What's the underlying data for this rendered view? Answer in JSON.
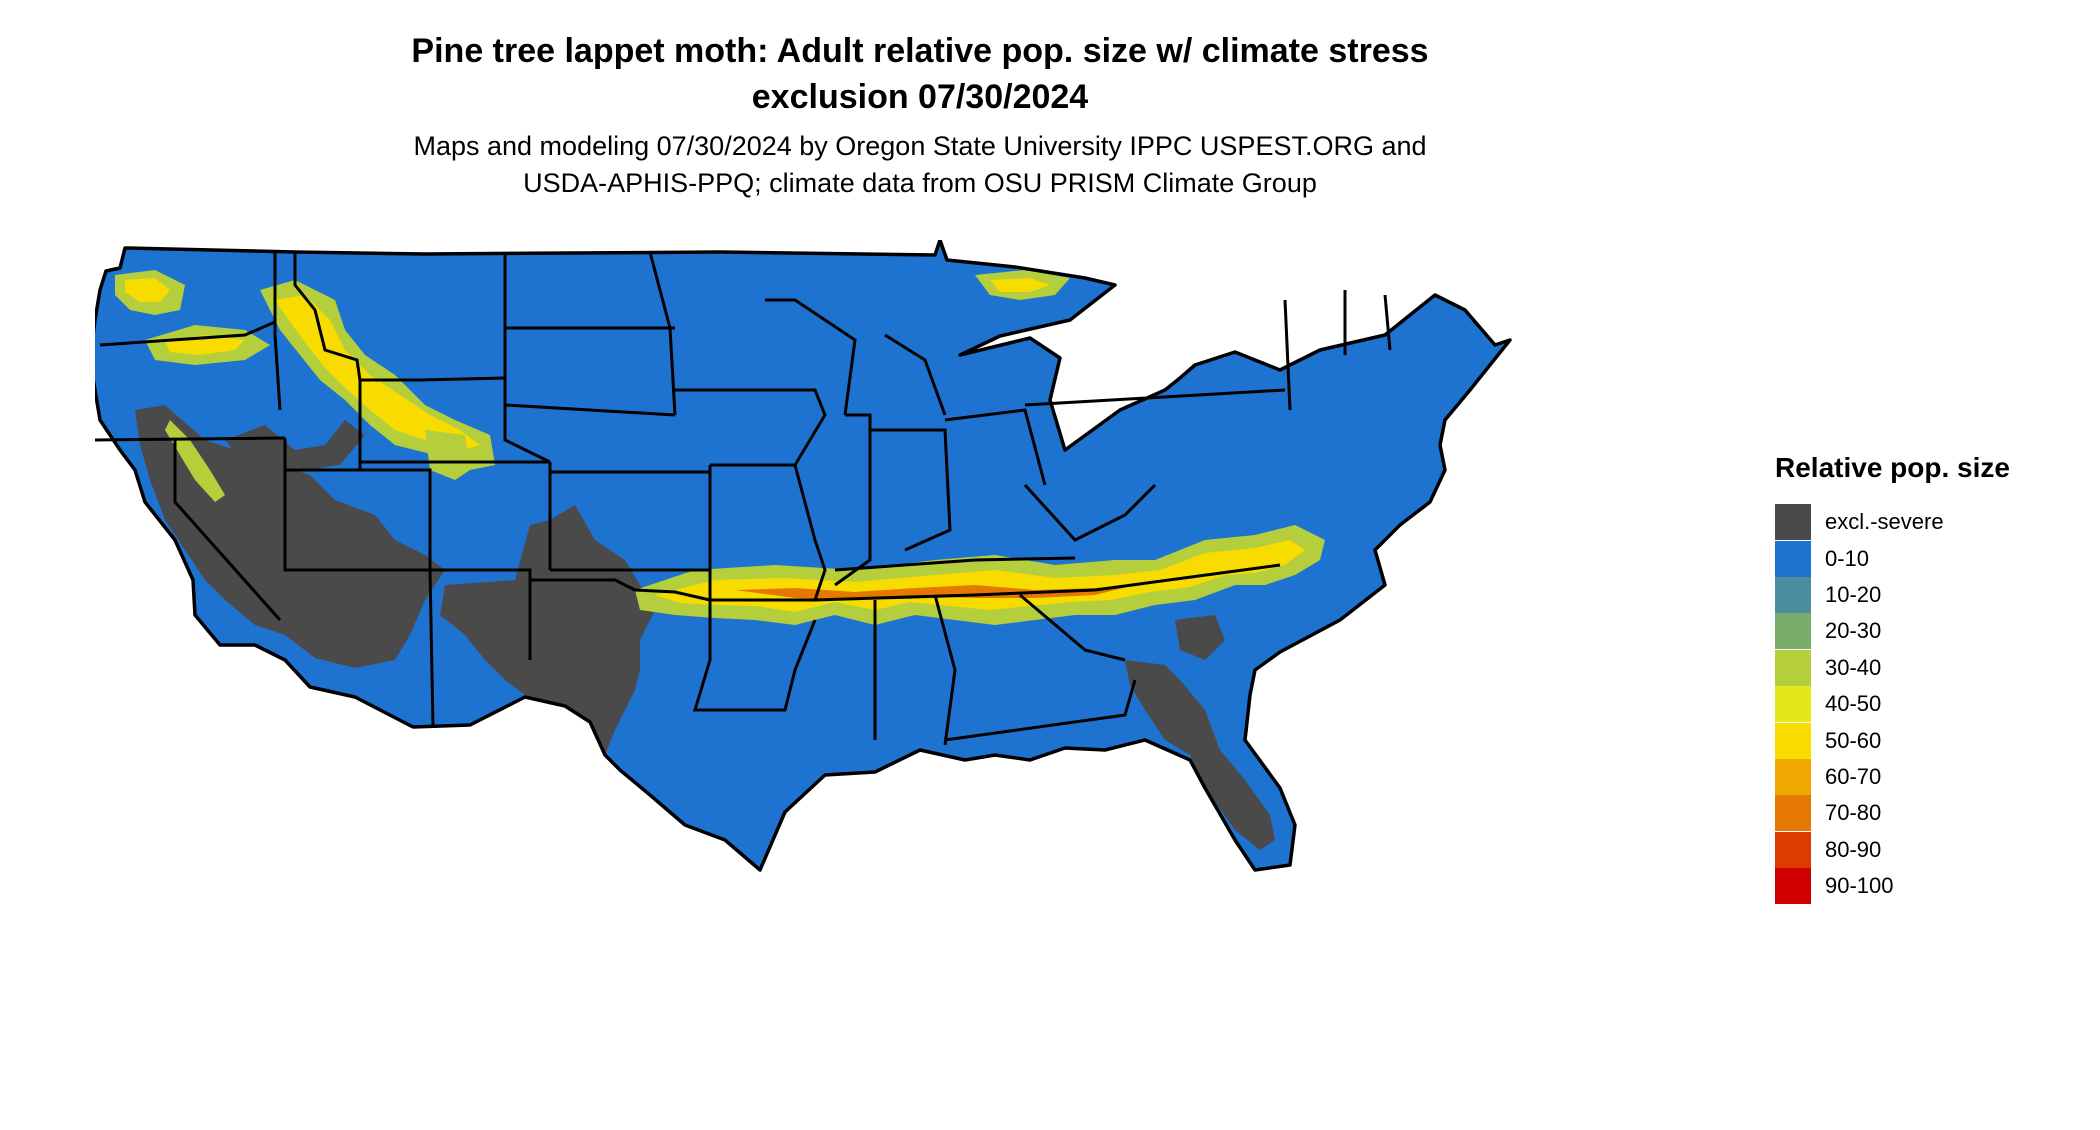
{
  "map": {
    "title_line1": "Pine tree lappet moth: Adult relative pop. size w/ climate stress",
    "title_line2": "exclusion 07/30/2024",
    "subtitle_line1": "Maps and modeling 07/30/2024 by Oregon State University IPPC USPEST.ORG and",
    "subtitle_line2": "USDA-APHIS-PPQ; climate data from OSU PRISM Climate Group",
    "region": "Contiguous United States"
  },
  "legend": {
    "title": "Relative pop. size",
    "items": [
      {
        "label": "excl.-severe",
        "color": "#4a4a4a"
      },
      {
        "label": "0-10",
        "color": "#1f73d0"
      },
      {
        "label": "10-20",
        "color": "#4a8ea0"
      },
      {
        "label": "20-30",
        "color": "#7aac6a"
      },
      {
        "label": "30-40",
        "color": "#b5cf3c"
      },
      {
        "label": "40-50",
        "color": "#e2e81a"
      },
      {
        "label": "50-60",
        "color": "#f8dc00"
      },
      {
        "label": "60-70",
        "color": "#efa800"
      },
      {
        "label": "70-80",
        "color": "#e57800"
      },
      {
        "label": "80-90",
        "color": "#dc3c00"
      },
      {
        "label": "90-100",
        "color": "#d00000"
      }
    ]
  }
}
